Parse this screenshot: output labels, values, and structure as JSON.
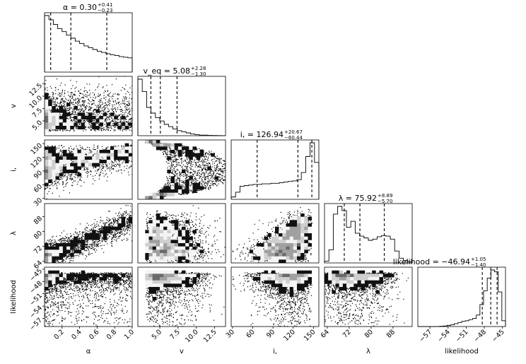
{
  "chart_data": {
    "type": "corner",
    "parameters": [
      {
        "key": "alpha",
        "label": "α",
        "range": [
          0.0,
          1.0
        ],
        "ticks": [
          0.2,
          0.4,
          0.6,
          0.8,
          1.0
        ],
        "tick_labels": [
          "0.2",
          "0.4",
          "0.6",
          "0.8",
          "1.0"
        ],
        "median": 0.3,
        "plus": 0.41,
        "minus": 0.23,
        "title_main": "α = 0.30",
        "title_plus": "+0.41",
        "title_minus": "−0.23",
        "histogram": [
          95,
          88,
          80,
          73,
          68,
          62,
          57,
          52,
          48,
          44,
          41,
          38,
          35,
          33,
          31,
          29,
          28,
          26,
          25,
          24
        ]
      },
      {
        "key": "veq",
        "label": "v_eq",
        "range": [
          2.0,
          14.0
        ],
        "ticks": [
          5.0,
          7.5,
          10.0,
          12.5
        ],
        "tick_labels": [
          "5.0",
          "7.5",
          "10.0",
          "12.5"
        ],
        "median": 5.08,
        "plus": 2.28,
        "minus": 1.3,
        "title_main": "v_eq = 5.08",
        "title_plus": "+2.28",
        "title_minus": "−1.30",
        "histogram": [
          100,
          78,
          50,
          40,
          32,
          26,
          20,
          16,
          12,
          9,
          7,
          5,
          3,
          2,
          1,
          1,
          0.5,
          0.3,
          0.2,
          0.1
        ]
      },
      {
        "key": "inc",
        "label": "i,",
        "range": [
          28,
          158
        ],
        "ticks": [
          30,
          60,
          90,
          120,
          150
        ],
        "tick_labels": [
          "30",
          "60",
          "90",
          "120",
          "150"
        ],
        "median": 126.94,
        "plus": 20.67,
        "minus": 60.44,
        "title_main": "i, = 126.94",
        "title_plus": "+20.67",
        "title_minus": "−60.44",
        "histogram": [
          4,
          12,
          22,
          23,
          24,
          25,
          25,
          26,
          26,
          27,
          27,
          28,
          29,
          30,
          31,
          33,
          45,
          72,
          95,
          62
        ]
      },
      {
        "key": "lambda",
        "label": "λ",
        "range": [
          63,
          95
        ],
        "ticks": [
          64,
          72,
          80,
          88
        ],
        "tick_labels": [
          "64",
          "72",
          "80",
          "88"
        ],
        "median": 75.92,
        "plus": 8.89,
        "minus": 5.7,
        "title_main": "λ = 75.92",
        "title_plus": "+8.89",
        "title_minus": "−5.70",
        "histogram": [
          3,
          22,
          82,
          95,
          88,
          60,
          70,
          50,
          45,
          42,
          38,
          40,
          44,
          46,
          45,
          40,
          20,
          8,
          4,
          2
        ]
      },
      {
        "key": "likelihood",
        "label": "likelihood",
        "range": [
          -59,
          -44.5
        ],
        "ticks": [
          -57,
          -54,
          -51,
          -48,
          -45
        ],
        "tick_labels": [
          "−57",
          "−54",
          "−51",
          "−48",
          "−45"
        ],
        "median": -46.94,
        "plus": 1.05,
        "minus": 1.4,
        "title_main": "likelihood = −46.94",
        "title_plus": "+1.05",
        "title_minus": "−1.40",
        "histogram": [
          0,
          0,
          0,
          0,
          0,
          0,
          0.5,
          1,
          2,
          3,
          5,
          7,
          9,
          10,
          12,
          14,
          20,
          38,
          62,
          84,
          98,
          95,
          60,
          10
        ]
      }
    ],
    "x_axis_labels": [
      "α",
      "v_eq",
      "i,",
      "λ",
      "likelihood"
    ],
    "y_axis_labels": [
      "v_eq",
      "i,",
      "λ",
      "likelihood"
    ]
  }
}
